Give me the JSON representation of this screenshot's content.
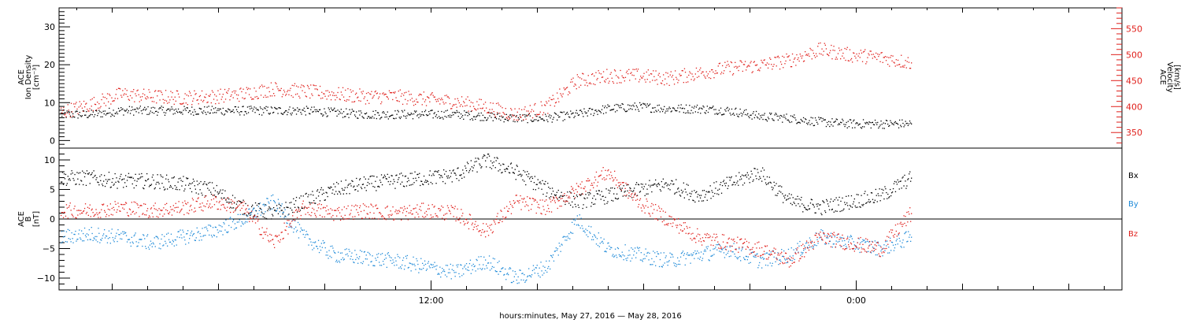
{
  "chart_data": [
    {
      "type": "scatter",
      "panel": "plasma",
      "ylabel_left": [
        "ACE",
        "Ion Density",
        "[cm⁻³]"
      ],
      "ylabel_right": [
        "ACE",
        "Velocity",
        "[km/s]"
      ],
      "left_axis": {
        "ylim": [
          -2,
          35
        ],
        "ticks": [
          0,
          10,
          20,
          30
        ],
        "tick_labels": [
          "0",
          "10",
          "20",
          "30"
        ]
      },
      "right_axis": {
        "ylim": [
          320,
          590
        ],
        "ticks": [
          350,
          400,
          450,
          500,
          550
        ],
        "tick_labels": [
          "350",
          "400",
          "450",
          "500",
          "550"
        ]
      },
      "series": [
        {
          "axis": "left",
          "color": "#000000",
          "x": [
            0,
            1,
            2,
            3,
            4,
            5,
            6,
            7,
            8,
            9,
            10,
            11,
            12,
            13,
            14,
            15,
            16,
            17,
            18,
            19,
            20,
            21,
            22,
            23,
            24,
            25,
            26,
            27,
            28
          ],
          "y": [
            7,
            7,
            8,
            8,
            8,
            8,
            8,
            8,
            8,
            7.5,
            7,
            7,
            7,
            7,
            6.5,
            6,
            6,
            7,
            8.5,
            9,
            8.5,
            8.5,
            8,
            6.5,
            6,
            5,
            4.5,
            4.5,
            4.5
          ]
        },
        {
          "axis": "right",
          "color": "#e0201c",
          "x": [
            0,
            1,
            2,
            3,
            4,
            5,
            6,
            7,
            8,
            9,
            10,
            11,
            12,
            13,
            14,
            15,
            16,
            17,
            18,
            19,
            20,
            21,
            22,
            23,
            24,
            25,
            26,
            27,
            28
          ],
          "y": [
            390,
            405,
            425,
            420,
            418,
            420,
            425,
            435,
            430,
            425,
            420,
            420,
            415,
            410,
            400,
            385,
            400,
            450,
            460,
            460,
            455,
            465,
            475,
            480,
            490,
            510,
            500,
            495,
            485
          ]
        }
      ]
    },
    {
      "type": "scatter",
      "panel": "magnetic field",
      "ylabel": [
        "ACE",
        "B",
        "[nT]"
      ],
      "ylim": [
        -12,
        12
      ],
      "ticks": [
        -10,
        -5,
        0,
        5,
        10
      ],
      "tick_labels": [
        "−10",
        "−5",
        "0",
        "5",
        "10"
      ],
      "zero_line": true,
      "series": [
        {
          "name": "Bx",
          "color": "#000000",
          "x": [
            0,
            1,
            2,
            3,
            4,
            5,
            6,
            7,
            8,
            9,
            10,
            11,
            12,
            13,
            14,
            15,
            16,
            17,
            18,
            19,
            20,
            21,
            22,
            23,
            24,
            25,
            26,
            27,
            28
          ],
          "y": [
            7,
            7,
            6.5,
            6.5,
            6,
            5,
            2,
            1,
            3,
            5,
            6,
            6.5,
            7,
            7.5,
            10,
            8,
            5,
            3,
            4,
            5,
            6,
            4,
            6,
            8,
            3,
            2,
            3,
            4,
            7
          ]
        },
        {
          "name": "By",
          "color": "#1f8ad8",
          "x": [
            0,
            1,
            2,
            3,
            4,
            5,
            6,
            7,
            8,
            9,
            10,
            11,
            12,
            13,
            14,
            15,
            16,
            17,
            18,
            19,
            20,
            21,
            22,
            23,
            24,
            25,
            26,
            27,
            28
          ],
          "y": [
            -3,
            -2.5,
            -3,
            -4,
            -3,
            -2,
            0,
            3,
            -3,
            -6,
            -6.5,
            -7,
            -8,
            -9,
            -7,
            -10,
            -8,
            0,
            -5,
            -6,
            -7,
            -6,
            -5,
            -7,
            -6,
            -3,
            -4,
            -5,
            -3
          ]
        },
        {
          "name": "Bz",
          "color": "#e0201c",
          "x": [
            0,
            1,
            2,
            3,
            4,
            5,
            6,
            7,
            8,
            9,
            10,
            11,
            12,
            13,
            14,
            15,
            16,
            17,
            18,
            19,
            20,
            21,
            22,
            23,
            24,
            25,
            26,
            27,
            28
          ],
          "y": [
            1.5,
            1.5,
            2,
            1.5,
            2,
            3,
            2,
            -4,
            2,
            1,
            1.5,
            1,
            1.5,
            1,
            -2,
            3,
            2,
            5,
            8,
            3,
            0,
            -3,
            -4,
            -5,
            -7,
            -3,
            -4,
            -5,
            1
          ]
        }
      ],
      "legend": [
        "Bx",
        "By",
        "Bz"
      ],
      "legend_placement": "right"
    }
  ],
  "x_axis": {
    "label": "hours:minutes, May 27, 2016 — May 28, 2016",
    "tick_labels": [
      "12:00",
      "0:00"
    ],
    "range_hours_from_may27_midnight": [
      1.5,
      31.5
    ],
    "major_ticks_hours": [
      12,
      24
    ]
  },
  "colors": {
    "black": "#000000",
    "red": "#e0201c",
    "blue": "#1f8ad8"
  }
}
